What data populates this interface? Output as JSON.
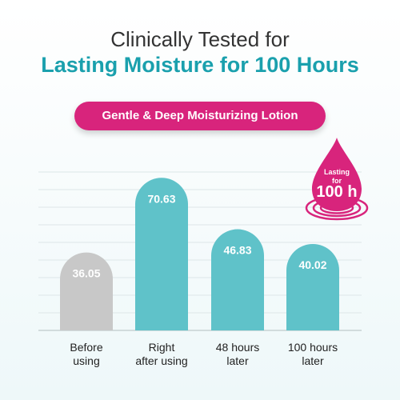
{
  "header": {
    "title_line1": "Clinically Tested for",
    "title_line2": "Lasting Moisture for 100 Hours",
    "badge": "Gentle & Deep Moisturizing Lotion"
  },
  "badge_drop": {
    "small_line1": "Lasting",
    "small_line2": "for",
    "big": "100 h"
  },
  "colors": {
    "accent_teal": "#1aa0ad",
    "bar_teal": "#5fc2c9",
    "bar_grey": "#c8c8c8",
    "pink": "#d8247c"
  },
  "chart_data": {
    "type": "bar",
    "categories": [
      "Before\nusing",
      "Right\nafter using",
      "48 hours\nlater",
      "100 hours\nlater"
    ],
    "values": [
      36.05,
      70.63,
      46.83,
      40.02
    ],
    "value_labels": [
      "36.05",
      "70.63",
      "46.83",
      "40.02"
    ],
    "bar_colors": [
      "#c8c8c8",
      "#5fc2c9",
      "#5fc2c9",
      "#5fc2c9"
    ],
    "title": "",
    "xlabel": "",
    "ylabel": "",
    "ylim": [
      0,
      100
    ],
    "grid": true,
    "legend": "none"
  }
}
